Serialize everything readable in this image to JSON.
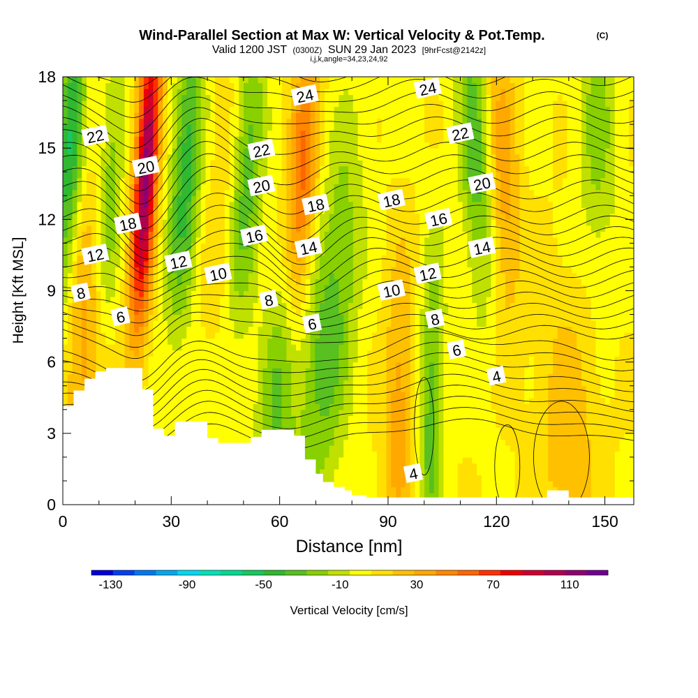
{
  "chart_data": {
    "type": "heatmap",
    "title": "Wind-Parallel Section at Max W: Vertical Velocity & Pot.Temp.",
    "title_mark": "(C)",
    "subtitle_parts": {
      "valid": "Valid 1200 JST",
      "utc": "(0300Z)",
      "date": "SUN 29 Jan 2023",
      "fcst": "[9hrFcst@2142z]"
    },
    "subtitle2": "i,j,k,angle=34,23,24,92",
    "xlabel": "Distance [nm]",
    "ylabel": "Height [Kft MSL]",
    "xlim": [
      0,
      158
    ],
    "ylim": [
      0,
      18
    ],
    "xticks": [
      0,
      30,
      60,
      90,
      120,
      150
    ],
    "yticks": [
      0,
      3,
      6,
      9,
      12,
      15,
      18
    ],
    "colorbar": {
      "label": "Vertical Velocity [cm/s]",
      "tick_labels": [
        "-130",
        "-90",
        "-50",
        "-10",
        "30",
        "70",
        "110"
      ],
      "tick_values": [
        -130,
        -90,
        -50,
        -10,
        30,
        70,
        110
      ],
      "range": [
        -140,
        130
      ],
      "colors": [
        "#0000d8",
        "#0040ee",
        "#0078f0",
        "#00a8ee",
        "#00d8f0",
        "#00e0b8",
        "#00d890",
        "#18c860",
        "#30b830",
        "#58c020",
        "#88d000",
        "#c0e000",
        "#ffff00",
        "#ffe000",
        "#ffc000",
        "#ffa800",
        "#ff8800",
        "#ff6600",
        "#ff3000",
        "#ee0000",
        "#cc0030",
        "#b00050",
        "#900070",
        "#700090"
      ]
    },
    "theta_contour_labels": [
      {
        "x": 5,
        "y": 8.9,
        "text": "8"
      },
      {
        "x": 16,
        "y": 7.9,
        "text": "6"
      },
      {
        "x": 9,
        "y": 10.5,
        "text": "12"
      },
      {
        "x": 18,
        "y": 11.8,
        "text": "18"
      },
      {
        "x": 9,
        "y": 15.5,
        "text": "22"
      },
      {
        "x": 23,
        "y": 14.2,
        "text": "20"
      },
      {
        "x": 32,
        "y": 10.2,
        "text": "12"
      },
      {
        "x": 43,
        "y": 9.7,
        "text": "10"
      },
      {
        "x": 57,
        "y": 8.6,
        "text": "8"
      },
      {
        "x": 53,
        "y": 11.3,
        "text": "16"
      },
      {
        "x": 55,
        "y": 13.4,
        "text": "20"
      },
      {
        "x": 55,
        "y": 14.9,
        "text": "22"
      },
      {
        "x": 69,
        "y": 7.6,
        "text": "6"
      },
      {
        "x": 68,
        "y": 10.8,
        "text": "14"
      },
      {
        "x": 70,
        "y": 12.6,
        "text": "18"
      },
      {
        "x": 67,
        "y": 17.2,
        "text": "24"
      },
      {
        "x": 91,
        "y": 9.0,
        "text": "10"
      },
      {
        "x": 91,
        "y": 12.8,
        "text": "18"
      },
      {
        "x": 97,
        "y": 1.3,
        "text": "4"
      },
      {
        "x": 101,
        "y": 17.5,
        "text": "24"
      },
      {
        "x": 103,
        "y": 7.8,
        "text": "8"
      },
      {
        "x": 101,
        "y": 9.7,
        "text": "12"
      },
      {
        "x": 104,
        "y": 12.0,
        "text": "16"
      },
      {
        "x": 110,
        "y": 15.6,
        "text": "22"
      },
      {
        "x": 109,
        "y": 6.5,
        "text": "6"
      },
      {
        "x": 116,
        "y": 13.5,
        "text": "20"
      },
      {
        "x": 116,
        "y": 10.8,
        "text": "14"
      },
      {
        "x": 120,
        "y": 5.4,
        "text": "4"
      }
    ],
    "terrain": {
      "x": [
        0,
        3,
        3,
        6,
        6,
        9,
        9,
        12,
        12,
        17,
        17,
        22,
        22,
        25,
        25,
        28,
        28,
        31,
        31,
        37,
        37,
        40,
        40,
        43,
        43,
        46,
        46,
        52,
        52,
        55,
        55,
        58,
        58,
        64,
        64,
        67,
        67,
        70,
        70,
        72,
        72,
        75,
        75,
        78,
        78,
        80,
        80,
        84,
        84,
        88,
        88,
        134,
        134,
        140,
        140,
        158
      ],
      "y": [
        4.15,
        4.15,
        4.8,
        4.8,
        5.3,
        5.3,
        5.6,
        5.6,
        5.75,
        5.75,
        5.75,
        5.75,
        4.85,
        4.85,
        3.2,
        3.2,
        2.9,
        2.9,
        3.5,
        3.5,
        3.5,
        3.5,
        2.8,
        2.8,
        2.6,
        2.6,
        2.6,
        2.6,
        2.85,
        2.85,
        3.15,
        3.15,
        3.15,
        3.15,
        2.9,
        2.9,
        1.9,
        1.9,
        1.3,
        1.3,
        0.95,
        0.95,
        0.75,
        0.75,
        0.6,
        0.6,
        0.4,
        0.4,
        0.3,
        0.3,
        0.3,
        0.3,
        0.6,
        0.6,
        0.3,
        0.3
      ]
    },
    "w_features": [
      {
        "x": 23,
        "z": 14,
        "w": 110,
        "sx": 2.2,
        "tilt": 0.35
      },
      {
        "x": 2,
        "z": 15,
        "w": -55,
        "sx": 2.5,
        "tilt": 0.3
      },
      {
        "x": 13,
        "z": 13,
        "w": -30,
        "sx": 2.5,
        "tilt": 0.35
      },
      {
        "x": 34,
        "z": 14,
        "w": -50,
        "sx": 3.0,
        "tilt": 0.35
      },
      {
        "x": 44,
        "z": 13,
        "w": 10,
        "sx": 3.5,
        "tilt": 0.35
      },
      {
        "x": 51,
        "z": 14,
        "w": -40,
        "sx": 3.0,
        "tilt": 0.35
      },
      {
        "x": 66,
        "z": 13,
        "w": 55,
        "sx": 3.0,
        "tilt": 0.3
      },
      {
        "x": 78,
        "z": 12,
        "w": -15,
        "sx": 4.0,
        "tilt": 0.3
      },
      {
        "x": 60,
        "z": 5,
        "w": -35,
        "sx": 4.0,
        "tilt": 0.5
      },
      {
        "x": 72,
        "z": 6,
        "w": -35,
        "sx": 5.0,
        "tilt": 0.45
      },
      {
        "x": 93,
        "z": 4,
        "w": 30,
        "sx": 3.0,
        "tilt": 0.1
      },
      {
        "x": 102,
        "z": 4,
        "w": -40,
        "sx": 2.5,
        "tilt": 0.1
      },
      {
        "x": 114,
        "z": 15,
        "w": -40,
        "sx": 3.0,
        "tilt": -0.3
      },
      {
        "x": 122,
        "z": 14,
        "w": 30,
        "sx": 3.0,
        "tilt": -0.2
      },
      {
        "x": 148,
        "z": 16,
        "w": -25,
        "sx": 4.0,
        "tilt": 0.0
      },
      {
        "x": 140,
        "z": 3,
        "w": 20,
        "sx": 6.0,
        "tilt": 0.0
      },
      {
        "x": 6,
        "z": 6.5,
        "w": 30,
        "sx": 4.0,
        "tilt": 0.2
      }
    ]
  }
}
